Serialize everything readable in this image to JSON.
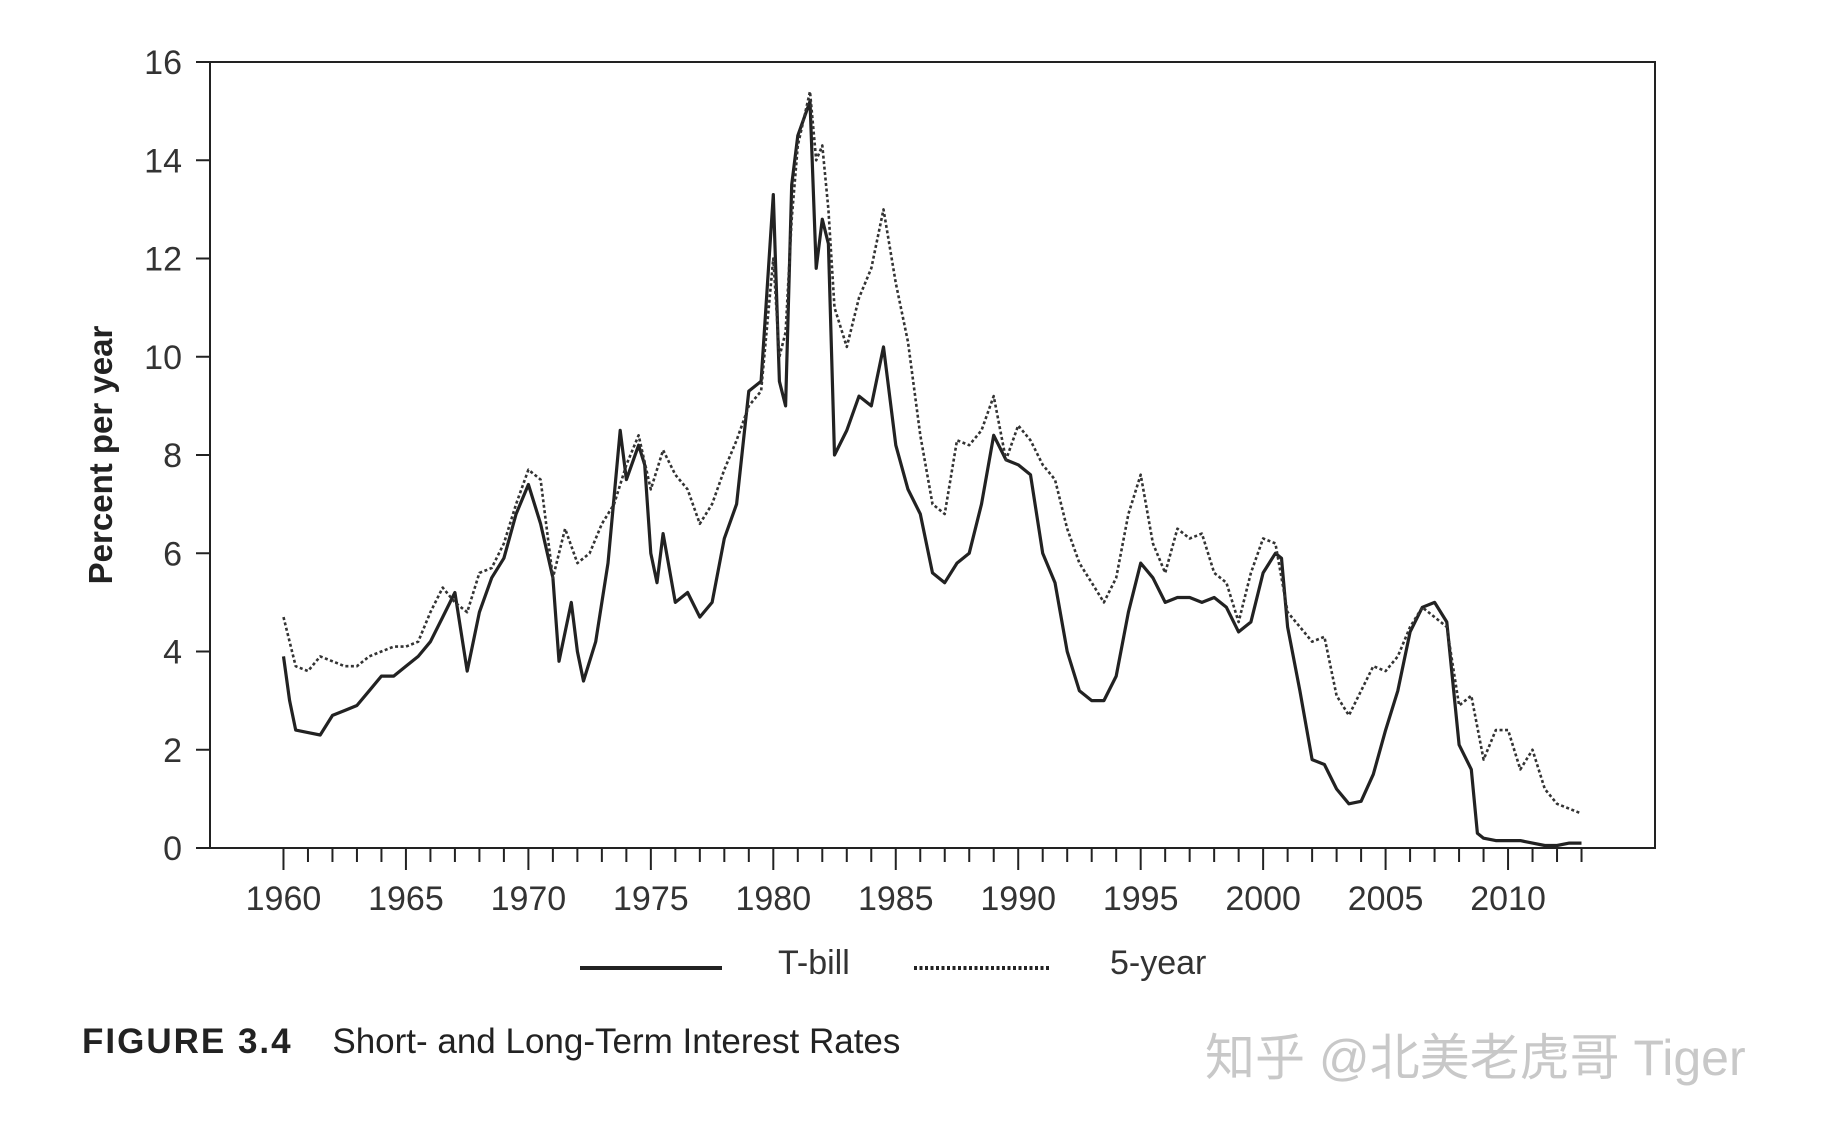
{
  "caption": {
    "label": "FIGURE 3.4",
    "title": "Short- and Long-Term Interest Rates"
  },
  "watermark": "知乎 @北美老虎哥 Tiger",
  "chart_data": {
    "type": "line",
    "title": "Short- and Long-Term Interest Rates",
    "xlabel": "",
    "ylabel": "Percent per year",
    "xlim": [
      1957,
      2016
    ],
    "ylim": [
      0,
      16
    ],
    "x_ticks": [
      1960,
      1965,
      1970,
      1975,
      1980,
      1985,
      1990,
      1995,
      2000,
      2005,
      2010
    ],
    "y_ticks": [
      0,
      2,
      4,
      6,
      8,
      10,
      12,
      14,
      16
    ],
    "grid": false,
    "legend": "bottom",
    "colors": {
      "T-bill": "#222222",
      "5-year": "#333333"
    },
    "series": [
      {
        "name": "T-bill",
        "style": "solid",
        "points": [
          [
            1960.0,
            3.9
          ],
          [
            1960.25,
            3.0
          ],
          [
            1960.5,
            2.4
          ],
          [
            1961.0,
            2.35
          ],
          [
            1961.5,
            2.3
          ],
          [
            1962.0,
            2.7
          ],
          [
            1962.5,
            2.8
          ],
          [
            1963.0,
            2.9
          ],
          [
            1963.5,
            3.2
          ],
          [
            1964.0,
            3.5
          ],
          [
            1964.5,
            3.5
          ],
          [
            1965.0,
            3.7
          ],
          [
            1965.5,
            3.9
          ],
          [
            1966.0,
            4.2
          ],
          [
            1966.5,
            4.7
          ],
          [
            1967.0,
            5.2
          ],
          [
            1967.5,
            3.6
          ],
          [
            1968.0,
            4.8
          ],
          [
            1968.5,
            5.5
          ],
          [
            1969.0,
            5.9
          ],
          [
            1969.5,
            6.8
          ],
          [
            1970.0,
            7.4
          ],
          [
            1970.5,
            6.6
          ],
          [
            1971.0,
            5.5
          ],
          [
            1971.25,
            3.8
          ],
          [
            1971.75,
            5.0
          ],
          [
            1972.0,
            4.0
          ],
          [
            1972.25,
            3.4
          ],
          [
            1972.75,
            4.2
          ],
          [
            1973.25,
            5.8
          ],
          [
            1973.75,
            8.5
          ],
          [
            1974.0,
            7.5
          ],
          [
            1974.5,
            8.2
          ],
          [
            1974.75,
            7.8
          ],
          [
            1975.0,
            6.0
          ],
          [
            1975.25,
            5.4
          ],
          [
            1975.5,
            6.4
          ],
          [
            1976.0,
            5.0
          ],
          [
            1976.5,
            5.2
          ],
          [
            1977.0,
            4.7
          ],
          [
            1977.5,
            5.0
          ],
          [
            1978.0,
            6.3
          ],
          [
            1978.5,
            7.0
          ],
          [
            1979.0,
            9.3
          ],
          [
            1979.5,
            9.5
          ],
          [
            1980.0,
            13.3
          ],
          [
            1980.25,
            9.5
          ],
          [
            1980.5,
            9.0
          ],
          [
            1980.75,
            13.5
          ],
          [
            1981.0,
            14.5
          ],
          [
            1981.5,
            15.2
          ],
          [
            1981.75,
            11.8
          ],
          [
            1982.0,
            12.8
          ],
          [
            1982.25,
            12.3
          ],
          [
            1982.5,
            8.0
          ],
          [
            1983.0,
            8.5
          ],
          [
            1983.5,
            9.2
          ],
          [
            1984.0,
            9.0
          ],
          [
            1984.5,
            10.2
          ],
          [
            1985.0,
            8.2
          ],
          [
            1985.5,
            7.3
          ],
          [
            1986.0,
            6.8
          ],
          [
            1986.5,
            5.6
          ],
          [
            1987.0,
            5.4
          ],
          [
            1987.5,
            5.8
          ],
          [
            1988.0,
            6.0
          ],
          [
            1988.5,
            7.0
          ],
          [
            1989.0,
            8.4
          ],
          [
            1989.5,
            7.9
          ],
          [
            1990.0,
            7.8
          ],
          [
            1990.5,
            7.6
          ],
          [
            1991.0,
            6.0
          ],
          [
            1991.5,
            5.4
          ],
          [
            1992.0,
            4.0
          ],
          [
            1992.5,
            3.2
          ],
          [
            1993.0,
            3.0
          ],
          [
            1993.5,
            3.0
          ],
          [
            1994.0,
            3.5
          ],
          [
            1994.5,
            4.8
          ],
          [
            1995.0,
            5.8
          ],
          [
            1995.5,
            5.5
          ],
          [
            1996.0,
            5.0
          ],
          [
            1996.5,
            5.1
          ],
          [
            1997.0,
            5.1
          ],
          [
            1997.5,
            5.0
          ],
          [
            1998.0,
            5.1
          ],
          [
            1998.5,
            4.9
          ],
          [
            1999.0,
            4.4
          ],
          [
            1999.5,
            4.6
          ],
          [
            2000.0,
            5.6
          ],
          [
            2000.5,
            6.0
          ],
          [
            2000.75,
            5.9
          ],
          [
            2001.0,
            4.5
          ],
          [
            2001.5,
            3.2
          ],
          [
            2002.0,
            1.8
          ],
          [
            2002.5,
            1.7
          ],
          [
            2003.0,
            1.2
          ],
          [
            2003.5,
            0.9
          ],
          [
            2004.0,
            0.95
          ],
          [
            2004.5,
            1.5
          ],
          [
            2005.0,
            2.4
          ],
          [
            2005.5,
            3.2
          ],
          [
            2006.0,
            4.4
          ],
          [
            2006.5,
            4.9
          ],
          [
            2007.0,
            5.0
          ],
          [
            2007.5,
            4.6
          ],
          [
            2008.0,
            2.1
          ],
          [
            2008.5,
            1.6
          ],
          [
            2008.75,
            0.3
          ],
          [
            2009.0,
            0.2
          ],
          [
            2009.5,
            0.15
          ],
          [
            2010.0,
            0.15
          ],
          [
            2010.5,
            0.15
          ],
          [
            2011.0,
            0.1
          ],
          [
            2011.5,
            0.05
          ],
          [
            2012.0,
            0.05
          ],
          [
            2012.5,
            0.1
          ],
          [
            2013.0,
            0.1
          ]
        ]
      },
      {
        "name": "5-year",
        "style": "dotted",
        "points": [
          [
            1960.0,
            4.7
          ],
          [
            1960.5,
            3.7
          ],
          [
            1961.0,
            3.6
          ],
          [
            1961.5,
            3.9
          ],
          [
            1962.0,
            3.8
          ],
          [
            1962.5,
            3.7
          ],
          [
            1963.0,
            3.7
          ],
          [
            1963.5,
            3.9
          ],
          [
            1964.0,
            4.0
          ],
          [
            1964.5,
            4.1
          ],
          [
            1965.0,
            4.1
          ],
          [
            1965.5,
            4.2
          ],
          [
            1966.0,
            4.8
          ],
          [
            1966.5,
            5.3
          ],
          [
            1967.0,
            5.0
          ],
          [
            1967.5,
            4.8
          ],
          [
            1968.0,
            5.6
          ],
          [
            1968.5,
            5.7
          ],
          [
            1969.0,
            6.2
          ],
          [
            1969.5,
            7.0
          ],
          [
            1970.0,
            7.7
          ],
          [
            1970.5,
            7.5
          ],
          [
            1971.0,
            5.5
          ],
          [
            1971.5,
            6.5
          ],
          [
            1972.0,
            5.8
          ],
          [
            1972.5,
            6.0
          ],
          [
            1973.0,
            6.6
          ],
          [
            1973.5,
            7.0
          ],
          [
            1974.0,
            7.8
          ],
          [
            1974.5,
            8.4
          ],
          [
            1975.0,
            7.3
          ],
          [
            1975.5,
            8.1
          ],
          [
            1976.0,
            7.6
          ],
          [
            1976.5,
            7.3
          ],
          [
            1977.0,
            6.6
          ],
          [
            1977.5,
            7.0
          ],
          [
            1978.0,
            7.7
          ],
          [
            1978.5,
            8.3
          ],
          [
            1979.0,
            9.0
          ],
          [
            1979.5,
            9.3
          ],
          [
            1980.0,
            12.0
          ],
          [
            1980.25,
            10.0
          ],
          [
            1980.5,
            10.5
          ],
          [
            1980.75,
            12.8
          ],
          [
            1981.0,
            14.3
          ],
          [
            1981.5,
            15.4
          ],
          [
            1981.75,
            14.0
          ],
          [
            1982.0,
            14.3
          ],
          [
            1982.25,
            13.0
          ],
          [
            1982.5,
            11.0
          ],
          [
            1983.0,
            10.2
          ],
          [
            1983.5,
            11.2
          ],
          [
            1984.0,
            11.8
          ],
          [
            1984.5,
            13.0
          ],
          [
            1985.0,
            11.5
          ],
          [
            1985.5,
            10.3
          ],
          [
            1986.0,
            8.4
          ],
          [
            1986.5,
            7.0
          ],
          [
            1987.0,
            6.8
          ],
          [
            1987.5,
            8.3
          ],
          [
            1988.0,
            8.2
          ],
          [
            1988.5,
            8.5
          ],
          [
            1989.0,
            9.2
          ],
          [
            1989.5,
            7.9
          ],
          [
            1990.0,
            8.6
          ],
          [
            1990.5,
            8.3
          ],
          [
            1991.0,
            7.8
          ],
          [
            1991.5,
            7.5
          ],
          [
            1992.0,
            6.5
          ],
          [
            1992.5,
            5.8
          ],
          [
            1993.0,
            5.4
          ],
          [
            1993.5,
            5.0
          ],
          [
            1994.0,
            5.5
          ],
          [
            1994.5,
            6.8
          ],
          [
            1995.0,
            7.6
          ],
          [
            1995.5,
            6.2
          ],
          [
            1996.0,
            5.6
          ],
          [
            1996.5,
            6.5
          ],
          [
            1997.0,
            6.3
          ],
          [
            1997.5,
            6.4
          ],
          [
            1998.0,
            5.6
          ],
          [
            1998.5,
            5.4
          ],
          [
            1999.0,
            4.6
          ],
          [
            1999.5,
            5.6
          ],
          [
            2000.0,
            6.3
          ],
          [
            2000.5,
            6.2
          ],
          [
            2001.0,
            4.8
          ],
          [
            2001.5,
            4.5
          ],
          [
            2002.0,
            4.2
          ],
          [
            2002.5,
            4.3
          ],
          [
            2003.0,
            3.1
          ],
          [
            2003.5,
            2.7
          ],
          [
            2004.0,
            3.2
          ],
          [
            2004.5,
            3.7
          ],
          [
            2005.0,
            3.6
          ],
          [
            2005.5,
            3.9
          ],
          [
            2006.0,
            4.5
          ],
          [
            2006.5,
            4.9
          ],
          [
            2007.0,
            4.7
          ],
          [
            2007.5,
            4.5
          ],
          [
            2008.0,
            2.9
          ],
          [
            2008.5,
            3.1
          ],
          [
            2009.0,
            1.8
          ],
          [
            2009.5,
            2.4
          ],
          [
            2010.0,
            2.4
          ],
          [
            2010.5,
            1.6
          ],
          [
            2011.0,
            2.0
          ],
          [
            2011.5,
            1.2
          ],
          [
            2012.0,
            0.9
          ],
          [
            2012.5,
            0.8
          ],
          [
            2013.0,
            0.7
          ]
        ]
      }
    ]
  }
}
